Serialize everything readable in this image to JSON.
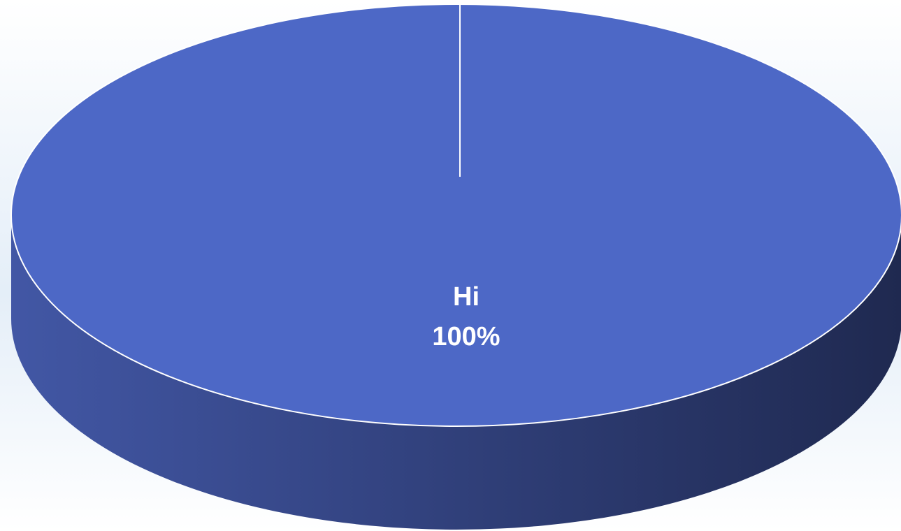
{
  "chart_data": {
    "type": "pie",
    "title": "",
    "three_d": true,
    "slices": [
      {
        "label": "Hi",
        "value": 100,
        "percent_label": "100%",
        "color": "#4D68C6"
      }
    ]
  },
  "colors": {
    "slice": "#4D68C6",
    "side_light": "#4257A5",
    "side_dark": "#1F2950",
    "background_tint": "#E4EEF8",
    "separator": "#FFFFFF"
  }
}
